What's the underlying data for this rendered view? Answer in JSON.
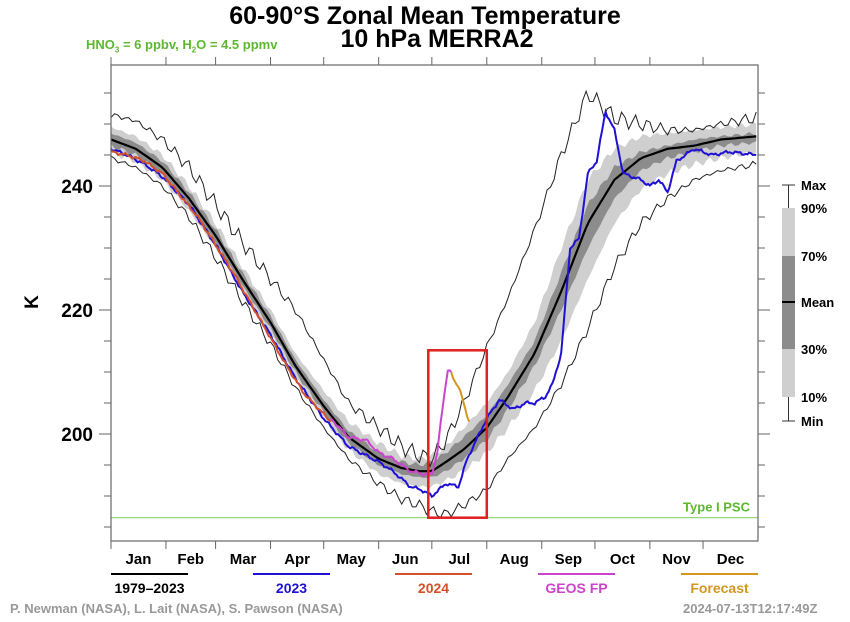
{
  "header": {
    "title_line1": "60-90°S Zonal Mean Temperature",
    "title_line2": "10 hPa    MERRA2",
    "chem_note": {
      "hno3_label": "HNO",
      "hno3_sub": "3",
      "hno3_value": " = 6 ppbv, H",
      "h2o_sub": "2",
      "h2o_value": "O = 4.5 ppmv"
    }
  },
  "footer": {
    "credits": "P. Newman (NASA), L. Lait (NASA), S. Pawson (NASA)",
    "timestamp": "2024-07-13T12:17:49Z"
  },
  "chart_data": {
    "type": "line",
    "title": "60-90°S Zonal Mean Temperature 10 hPa MERRA2",
    "xlabel": "",
    "ylabel": "K",
    "xlim": [
      1,
      365
    ],
    "ylim": [
      183,
      260
    ],
    "yticks": [
      200,
      220,
      240
    ],
    "ytick_labels": [
      "200",
      "220",
      "240"
    ],
    "yminor_step": 5,
    "month_labels": [
      "Jan",
      "Feb",
      "Mar",
      "Apr",
      "May",
      "Jun",
      "Jul",
      "Aug",
      "Sep",
      "Oct",
      "Nov",
      "Dec"
    ],
    "month_start_days": [
      1,
      32,
      60,
      91,
      121,
      152,
      182,
      213,
      244,
      274,
      305,
      335
    ],
    "grid": false,
    "reference_line": {
      "label": "Type I PSC",
      "value": 186.5,
      "color": "#8ed36a",
      "label_color": "#5cb82e"
    },
    "highlight_box": {
      "x_days": [
        180,
        213
      ],
      "y_values": [
        186.5,
        213.5
      ],
      "color": "#e02020"
    },
    "band_legend": {
      "labels": [
        "Max",
        "90%",
        "70%",
        "Mean",
        "30%",
        "10%",
        "Min"
      ]
    },
    "climatology": {
      "x": [
        1,
        15,
        30,
        45,
        60,
        75,
        91,
        105,
        121,
        135,
        152,
        165,
        175,
        182,
        190,
        200,
        213,
        225,
        240,
        255,
        270,
        285,
        300,
        315,
        330,
        345,
        365
      ],
      "max": [
        251.5,
        250.5,
        247.5,
        243,
        237,
        231,
        225,
        220,
        212,
        205,
        201,
        198,
        196.5,
        196,
        199,
        205,
        214,
        222,
        233,
        245,
        255,
        251,
        250,
        249,
        249,
        250,
        251
      ],
      "p90": [
        249.5,
        248,
        245,
        240,
        234,
        227,
        220,
        213,
        207,
        202,
        198.5,
        196.5,
        196,
        196.5,
        198,
        201,
        205,
        210,
        218,
        230,
        241,
        246,
        248,
        248.5,
        249,
        249.5,
        250
      ],
      "p70": [
        248.5,
        247,
        244,
        239,
        233,
        226,
        219,
        212,
        205.5,
        200.5,
        197,
        195.5,
        195,
        195.5,
        197,
        199.5,
        203,
        208,
        215,
        226,
        237,
        243,
        245.5,
        246.5,
        247.5,
        248,
        248.5
      ],
      "mean": [
        247.5,
        246,
        243,
        238,
        232,
        225,
        218,
        211,
        204.5,
        199.5,
        196,
        194.5,
        194,
        194,
        195.5,
        197.5,
        201,
        206,
        213,
        223,
        234,
        241,
        244.5,
        246,
        246.5,
        247.5,
        248
      ],
      "p30": [
        246.5,
        245,
        242,
        237,
        231,
        224,
        217,
        210,
        203.5,
        198.5,
        195,
        193.5,
        193,
        193,
        194,
        196,
        199,
        204,
        211,
        220,
        230,
        238,
        242.5,
        244.5,
        245.5,
        246.5,
        247
      ],
      "p10": [
        245.5,
        244,
        241,
        236,
        230,
        223,
        216,
        209,
        202.5,
        197.5,
        193.5,
        192,
        191.5,
        191.5,
        192.5,
        194,
        197,
        201,
        207,
        215,
        225,
        234,
        239.5,
        242,
        243.5,
        244.5,
        245.5
      ],
      "min": [
        244.5,
        243,
        240,
        235,
        228.5,
        221.5,
        214.5,
        207.5,
        201,
        196,
        192,
        189.5,
        188.5,
        187.5,
        187,
        188.5,
        191,
        196,
        201,
        208,
        217,
        227,
        234,
        238,
        241,
        242.5,
        243.5
      ]
    },
    "series": [
      {
        "name": "1979–2023",
        "color": "#000000",
        "ref": "climatology.mean"
      },
      {
        "name": "2023",
        "color": "#1f10d6",
        "x": [
          1,
          10,
          20,
          30,
          45,
          60,
          75,
          91,
          105,
          121,
          135,
          152,
          160,
          170,
          176,
          182,
          190,
          197,
          202,
          207,
          213,
          220,
          228,
          235,
          240,
          246,
          250,
          255,
          260,
          265,
          270,
          275,
          280,
          285,
          290,
          300,
          305,
          310,
          315,
          320,
          330,
          340,
          350,
          365
        ],
        "y": [
          246,
          245,
          243.5,
          241.5,
          237,
          230.5,
          223,
          216,
          209,
          202.5,
          198,
          195.5,
          194,
          191.5,
          191,
          190,
          192,
          191.5,
          196,
          199,
          202.5,
          205.5,
          204,
          205,
          205,
          206,
          208,
          213,
          230,
          231.5,
          242,
          244,
          252,
          249,
          242,
          241,
          240,
          241,
          239,
          244,
          246,
          245,
          245.5,
          245
        ]
      },
      {
        "name": "2024",
        "color": "#d4502a",
        "x": [
          1,
          10,
          20,
          30,
          40,
          50,
          60,
          70,
          80,
          91,
          100,
          110,
          120,
          125
        ],
        "y": [
          245.5,
          245,
          244,
          242,
          238.5,
          235,
          230.5,
          226,
          221,
          215.5,
          211,
          206.5,
          203.5,
          202
        ]
      },
      {
        "name": "GEOS FP",
        "color": "#cc44cc",
        "x": [
          125,
          135,
          145,
          152,
          160,
          170,
          178,
          182,
          185,
          188,
          191,
          193
        ],
        "y": [
          202.5,
          199.5,
          199,
          197,
          196,
          194,
          193.5,
          193.5,
          197,
          204,
          210.5,
          210
        ]
      },
      {
        "name": "Forecast",
        "color": "#d4961f",
        "x": [
          193,
          195,
          197,
          199,
          201,
          203
        ],
        "y": [
          210,
          208.5,
          207.5,
          206,
          204,
          202
        ]
      }
    ]
  }
}
